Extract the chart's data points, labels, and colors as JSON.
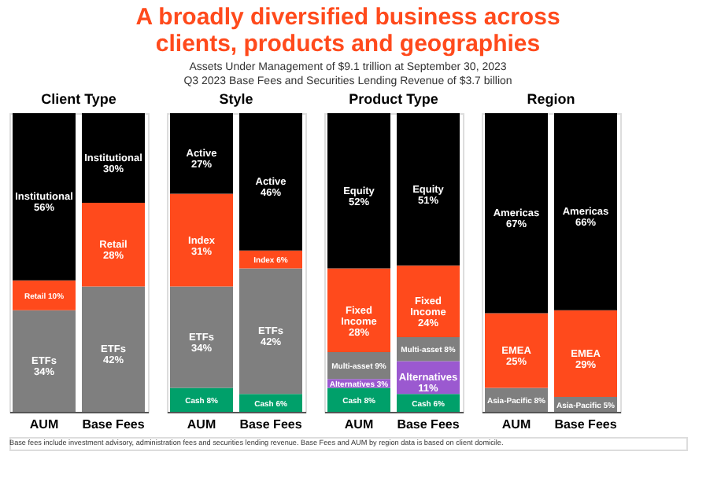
{
  "chart_data": [
    {
      "type": "other",
      "title": "A broadly diversified business across clients, products and geographies",
      "subtitle": [
        "Assets Under Management of $9.1 trillion at September 30, 2023",
        "Q3 2023 Base Fees and Securities Lending Revenue of $3.7 billion"
      ],
      "annotations": [
        "Base fees include investment advisory, administration fees and securities lending revenue. Base Fees and AUM by region data is based on client domicile."
      ]
    },
    {
      "type": "bar",
      "stacked": true,
      "title": "Client Type",
      "categories": [
        "AUM",
        "Base Fees"
      ],
      "series": [
        {
          "name": "ETFs",
          "color": "#7f7f7f",
          "values": [
            34,
            42
          ],
          "value_labels": [
            "34%",
            "42%"
          ]
        },
        {
          "name": "Retail",
          "color": "#ff4a1c",
          "values": [
            10,
            28
          ],
          "value_labels": [
            "10%",
            "28%"
          ]
        },
        {
          "name": "Institutional",
          "color": "#000000",
          "values": [
            56,
            30
          ],
          "value_labels": [
            "56%",
            "30%"
          ]
        }
      ]
    },
    {
      "type": "bar",
      "stacked": true,
      "title": "Style",
      "categories": [
        "AUM",
        "Base Fees"
      ],
      "series": [
        {
          "name": "Cash",
          "color": "#00a06a",
          "values": [
            8,
            6
          ],
          "value_labels": [
            "8%",
            "6%"
          ]
        },
        {
          "name": "ETFs",
          "color": "#7f7f7f",
          "values": [
            34,
            42
          ],
          "value_labels": [
            "34%",
            "42%"
          ]
        },
        {
          "name": "Index",
          "color": "#ff4a1c",
          "values": [
            31,
            6
          ],
          "value_labels": [
            "31%",
            "6%"
          ]
        },
        {
          "name": "Active",
          "color": "#000000",
          "values": [
            27,
            46
          ],
          "value_labels": [
            "27%",
            "46%"
          ]
        }
      ]
    },
    {
      "type": "bar",
      "stacked": true,
      "title": "Product Type",
      "categories": [
        "AUM",
        "Base Fees"
      ],
      "series": [
        {
          "name": "Cash",
          "color": "#00a06a",
          "values": [
            8,
            6
          ],
          "value_labels": [
            "8%",
            "6%"
          ]
        },
        {
          "name": "Alternatives",
          "color": "#9b59d0",
          "values": [
            3,
            11
          ],
          "value_labels": [
            "3%",
            "11%"
          ]
        },
        {
          "name": "Multi-asset",
          "color": "#7f7f7f",
          "values": [
            9,
            8
          ],
          "value_labels": [
            "9%",
            "8%"
          ]
        },
        {
          "name": "Fixed Income",
          "color": "#ff4a1c",
          "values": [
            28,
            24
          ],
          "value_labels": [
            "28%",
            "24%"
          ]
        },
        {
          "name": "Equity",
          "color": "#000000",
          "values": [
            52,
            51
          ],
          "value_labels": [
            "52%",
            "51%"
          ]
        }
      ]
    },
    {
      "type": "bar",
      "stacked": true,
      "title": "Region",
      "categories": [
        "AUM",
        "Base Fees"
      ],
      "series": [
        {
          "name": "Asia-Pacific",
          "color": "#7f7f7f",
          "values": [
            8,
            5
          ],
          "value_labels": [
            "8%",
            "5%"
          ]
        },
        {
          "name": "EMEA",
          "color": "#ff4a1c",
          "values": [
            25,
            29
          ],
          "value_labels": [
            "25%",
            "29%"
          ]
        },
        {
          "name": "Americas",
          "color": "#000000",
          "values": [
            67,
            66
          ],
          "value_labels": [
            "67%",
            "66%"
          ]
        }
      ]
    }
  ]
}
